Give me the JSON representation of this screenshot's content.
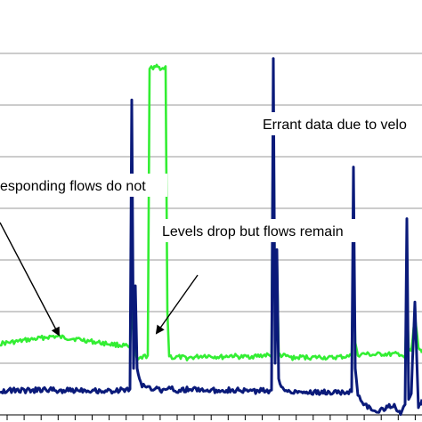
{
  "chart_data": {
    "type": "line",
    "title": "",
    "xlabel": "",
    "ylabel": "",
    "ylim": [
      0,
      7
    ],
    "grid": true,
    "annotations": [
      {
        "text": "Errant data due to velo",
        "target": "spike-1"
      },
      {
        "text": "esponding flows do not",
        "target": "green-baseline"
      },
      {
        "text": "Levels drop but flows remain",
        "target": "green-drop"
      }
    ],
    "series": [
      {
        "color": "#33ee33",
        "role": "level",
        "x": [
          0,
          10,
          20,
          30,
          40,
          50,
          60,
          70,
          80,
          90,
          100,
          110,
          120,
          130,
          140,
          146,
          148,
          150,
          152,
          154,
          158,
          166,
          168,
          170,
          172,
          176,
          180,
          184,
          186,
          188,
          190,
          195,
          200,
          210,
          220,
          230,
          240,
          250,
          260,
          270,
          280,
          290,
          300,
          305,
          307,
          309,
          311,
          313,
          316,
          320,
          330,
          340,
          350,
          360,
          370,
          380,
          390,
          395,
          397,
          399,
          402,
          410,
          420,
          430,
          440,
          450,
          455,
          457,
          459,
          462,
          466,
          470,
          474
        ],
        "y": [
          1.38,
          1.4,
          1.42,
          1.45,
          1.47,
          1.5,
          1.52,
          1.5,
          1.48,
          1.46,
          1.43,
          1.4,
          1.38,
          1.36,
          1.34,
          1.3,
          2.0,
          1.6,
          1.2,
          1.04,
          1.1,
          1.15,
          6.7,
          6.75,
          6.7,
          6.74,
          6.72,
          6.7,
          6.75,
          2.0,
          1.15,
          1.1,
          1.12,
          1.1,
          1.12,
          1.15,
          1.13,
          1.12,
          1.15,
          1.12,
          1.13,
          1.14,
          1.16,
          1.12,
          6.5,
          1.5,
          3.1,
          1.2,
          1.15,
          1.14,
          1.1,
          1.12,
          1.11,
          1.12,
          1.1,
          1.12,
          1.13,
          1.14,
          3.2,
          1.4,
          1.16,
          1.18,
          1.16,
          1.18,
          1.17,
          1.18,
          1.1,
          2.2,
          1.3,
          1.2,
          1.9,
          1.3,
          1.2
        ]
      },
      {
        "color": "#0a1a7a",
        "role": "flow",
        "x": [
          0,
          10,
          20,
          30,
          40,
          50,
          60,
          70,
          80,
          90,
          100,
          110,
          120,
          130,
          140,
          146,
          148,
          150,
          152,
          154,
          158,
          166,
          168,
          170,
          172,
          176,
          180,
          184,
          186,
          188,
          190,
          195,
          200,
          210,
          220,
          230,
          240,
          250,
          260,
          270,
          280,
          290,
          300,
          305,
          307,
          309,
          311,
          313,
          316,
          320,
          330,
          340,
          350,
          360,
          370,
          380,
          390,
          395,
          397,
          399,
          402,
          410,
          420,
          430,
          440,
          450,
          455,
          457,
          459,
          462,
          466,
          470,
          474
        ],
        "y": [
          0.47,
          0.47,
          0.48,
          0.47,
          0.48,
          0.49,
          0.48,
          0.47,
          0.48,
          0.49,
          0.48,
          0.47,
          0.46,
          0.47,
          0.48,
          0.5,
          6.1,
          0.9,
          2.5,
          0.9,
          0.6,
          0.55,
          0.55,
          0.48,
          0.5,
          0.49,
          0.48,
          0.5,
          0.49,
          0.5,
          0.5,
          0.49,
          0.48,
          0.49,
          0.5,
          0.48,
          0.47,
          0.49,
          0.48,
          0.47,
          0.46,
          0.46,
          0.47,
          0.48,
          6.9,
          1.0,
          3.2,
          0.7,
          0.5,
          0.48,
          0.46,
          0.45,
          0.44,
          0.43,
          0.44,
          0.43,
          0.44,
          0.45,
          4.8,
          0.9,
          0.4,
          0.2,
          0.05,
          0.1,
          0.2,
          0.05,
          0.2,
          3.8,
          0.3,
          0.4,
          2.2,
          0.1,
          0.3
        ]
      }
    ]
  }
}
